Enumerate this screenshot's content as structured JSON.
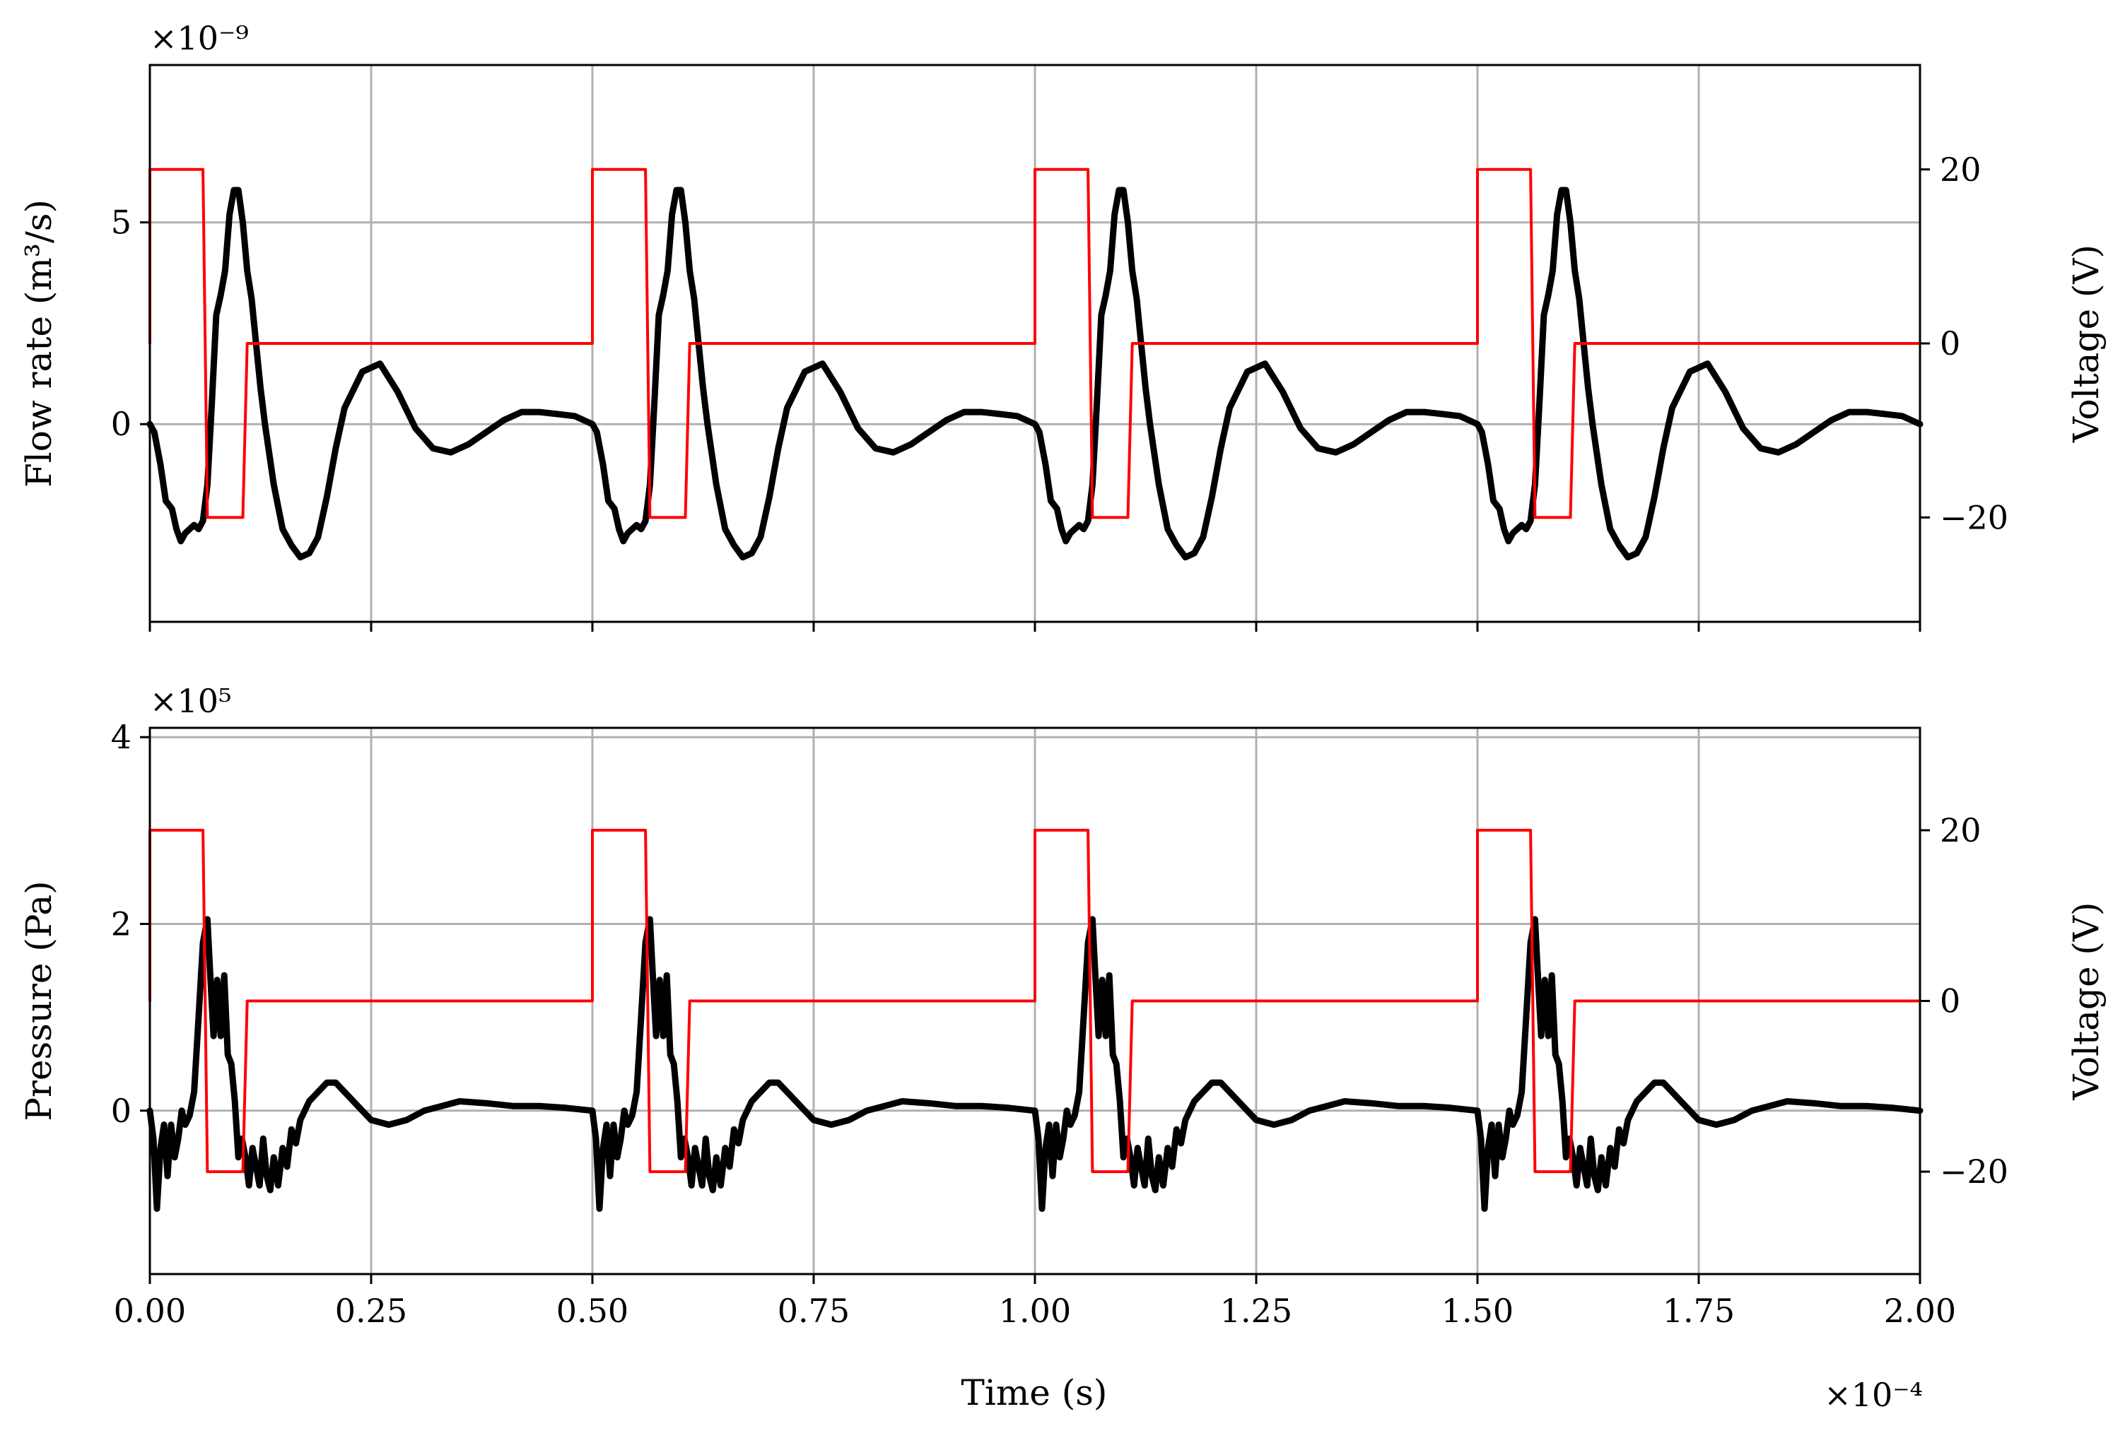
{
  "colors": {
    "flow_series": "#000000",
    "pressure_series": "#000000",
    "voltage_series": "#ff0000",
    "grid": "#b0b0b0"
  },
  "xlabel": "Time (s)",
  "x_offset_label": "×10⁻⁴",
  "chart_data": [
    {
      "type": "line",
      "subplot": "top",
      "ylabel_left": "Flow rate (m³/s)",
      "ylabel_right": "Voltage (V)",
      "y_offset_label": "×10⁻⁹",
      "x_unit_scale": 0.0001,
      "xlim": [
        0,
        2.0
      ],
      "ylim_left": [
        -4.9,
        8.9
      ],
      "ylim_right": [
        -32,
        32
      ],
      "grid": true,
      "x_ticks": [
        "0.00",
        "0.25",
        "0.50",
        "0.75",
        "1.00",
        "1.25",
        "1.50",
        "1.75",
        "2.00"
      ],
      "y_ticks_left": [
        "0",
        "5"
      ],
      "y_ticks_right": [
        "−20",
        "0",
        "20"
      ],
      "series": [
        {
          "axis": "left",
          "period": 0.5,
          "x": [
            0.0,
            0.005,
            0.012,
            0.018,
            0.025,
            0.03,
            0.035,
            0.04,
            0.045,
            0.05,
            0.055,
            0.06,
            0.065,
            0.07,
            0.075,
            0.08,
            0.085,
            0.09,
            0.095,
            0.1,
            0.105,
            0.11,
            0.115,
            0.12,
            0.125,
            0.13,
            0.14,
            0.15,
            0.16,
            0.17,
            0.18,
            0.19,
            0.2,
            0.21,
            0.22,
            0.24,
            0.26,
            0.28,
            0.3,
            0.32,
            0.34,
            0.36,
            0.38,
            0.4,
            0.42,
            0.44,
            0.46,
            0.48,
            0.5
          ],
          "values": [
            0,
            -0.2,
            -1.0,
            -1.9,
            -2.1,
            -2.6,
            -2.9,
            -2.7,
            -2.6,
            -2.5,
            -2.6,
            -2.4,
            -1.5,
            0.5,
            2.7,
            3.2,
            3.8,
            5.2,
            5.8,
            5.8,
            5.0,
            3.8,
            3.1,
            2.0,
            0.9,
            0.0,
            -1.5,
            -2.6,
            -3.0,
            -3.3,
            -3.2,
            -2.8,
            -1.8,
            -0.6,
            0.4,
            1.3,
            1.5,
            0.8,
            -0.1,
            -0.6,
            -0.7,
            -0.5,
            -0.2,
            0.1,
            0.3,
            0.3,
            0.25,
            0.2,
            0.0
          ]
        },
        {
          "axis": "right",
          "period": 0.5,
          "x": [
            0.0,
            0.0,
            0.06,
            0.065,
            0.105,
            0.11,
            0.5
          ],
          "values": [
            0,
            20,
            20,
            -20,
            -20,
            0,
            0
          ]
        }
      ]
    },
    {
      "type": "line",
      "subplot": "bottom",
      "ylabel_left": "Pressure (Pa)",
      "ylabel_right": "Voltage (V)",
      "y_offset_label": "×10⁵",
      "x_unit_scale": 0.0001,
      "xlim": [
        0,
        2.0
      ],
      "ylim_left": [
        -1.75,
        4.1
      ],
      "ylim_right": [
        -32,
        32
      ],
      "grid": true,
      "x_ticks": [
        "0.00",
        "0.25",
        "0.50",
        "0.75",
        "1.00",
        "1.25",
        "1.50",
        "1.75",
        "2.00"
      ],
      "y_ticks_left": [
        "0",
        "2",
        "4"
      ],
      "y_ticks_right": [
        "−20",
        "0",
        "20"
      ],
      "series": [
        {
          "axis": "left",
          "period": 0.5,
          "x": [
            0.0,
            0.004,
            0.008,
            0.012,
            0.016,
            0.02,
            0.024,
            0.028,
            0.032,
            0.036,
            0.04,
            0.045,
            0.05,
            0.055,
            0.06,
            0.065,
            0.068,
            0.072,
            0.076,
            0.08,
            0.084,
            0.088,
            0.092,
            0.096,
            0.1,
            0.104,
            0.108,
            0.112,
            0.116,
            0.12,
            0.124,
            0.128,
            0.132,
            0.136,
            0.14,
            0.145,
            0.15,
            0.155,
            0.16,
            0.165,
            0.17,
            0.18,
            0.19,
            0.2,
            0.21,
            0.22,
            0.235,
            0.25,
            0.27,
            0.29,
            0.31,
            0.33,
            0.35,
            0.38,
            0.41,
            0.44,
            0.47,
            0.5
          ],
          "values": [
            0,
            -0.3,
            -1.05,
            -0.4,
            -0.15,
            -0.7,
            -0.15,
            -0.5,
            -0.3,
            0.0,
            -0.15,
            -0.05,
            0.2,
            1.0,
            1.8,
            2.05,
            1.5,
            0.8,
            1.4,
            0.8,
            1.45,
            0.6,
            0.5,
            0.1,
            -0.5,
            -0.3,
            -0.5,
            -0.8,
            -0.4,
            -0.6,
            -0.8,
            -0.3,
            -0.7,
            -0.85,
            -0.5,
            -0.8,
            -0.4,
            -0.6,
            -0.2,
            -0.35,
            -0.1,
            0.1,
            0.2,
            0.3,
            0.3,
            0.2,
            0.05,
            -0.1,
            -0.15,
            -0.1,
            0.0,
            0.05,
            0.1,
            0.08,
            0.05,
            0.05,
            0.03,
            0.0
          ]
        },
        {
          "axis": "right",
          "period": 0.5,
          "x": [
            0.0,
            0.0,
            0.06,
            0.065,
            0.105,
            0.11,
            0.5
          ],
          "values": [
            0,
            20,
            20,
            -20,
            -20,
            0,
            0
          ]
        }
      ]
    }
  ]
}
